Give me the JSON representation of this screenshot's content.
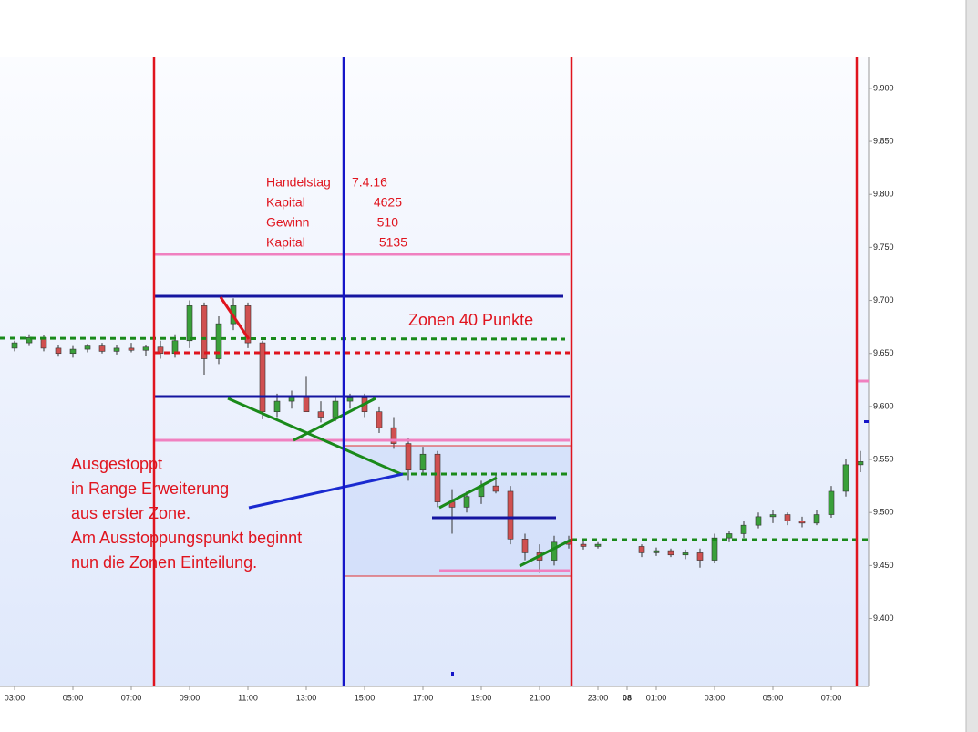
{
  "chart_data": {
    "type": "candlestick",
    "x": [
      3,
      3.5,
      4,
      4.5,
      5,
      5.5,
      6,
      6.5,
      7,
      7.5,
      8,
      8.5,
      9,
      9.5,
      10,
      10.5,
      11,
      11.5,
      12,
      12.5,
      13,
      13.5,
      14,
      14.5,
      15,
      15.5,
      16,
      16.5,
      17,
      17.5,
      18,
      18.5,
      19,
      19.5,
      20,
      20.5,
      21,
      21.5,
      22,
      22.5,
      23,
      24.5,
      25,
      25.5,
      26,
      26.5,
      27,
      27.5,
      28,
      28.5,
      29,
      29.5,
      30,
      30.5,
      31,
      31.5,
      32
    ],
    "open": [
      9655,
      9660,
      9665,
      9655,
      9650,
      9654,
      9657,
      9652,
      9655,
      9653,
      9656,
      9650,
      9662,
      9695,
      9645,
      9678,
      9695,
      9660,
      9595,
      9605,
      9610,
      9595,
      9590,
      9605,
      9608,
      9595,
      9580,
      9565,
      9540,
      9555,
      9510,
      9505,
      9515,
      9525,
      9520,
      9475,
      9462,
      9455,
      9472,
      9470,
      9468,
      9468,
      9462,
      9464,
      9460,
      9462,
      9455,
      9476,
      9480,
      9488,
      9496,
      9498,
      9492,
      9490,
      9498,
      9520,
      9545
    ],
    "high": [
      9662,
      9668,
      9667,
      9658,
      9657,
      9659,
      9660,
      9658,
      9660,
      9658,
      9662,
      9668,
      9700,
      9698,
      9685,
      9702,
      9698,
      9662,
      9612,
      9615,
      9628,
      9605,
      9610,
      9612,
      9612,
      9600,
      9590,
      9570,
      9562,
      9558,
      9522,
      9520,
      9530,
      9535,
      9525,
      9480,
      9470,
      9478,
      9478,
      9474,
      9472,
      9470,
      9467,
      9466,
      9465,
      9466,
      9480,
      9483,
      9492,
      9500,
      9502,
      9500,
      9496,
      9502,
      9525,
      9550,
      9558
    ],
    "low": [
      9652,
      9657,
      9652,
      9647,
      9646,
      9651,
      9650,
      9649,
      9651,
      9648,
      9645,
      9646,
      9655,
      9630,
      9640,
      9672,
      9655,
      9588,
      9590,
      9598,
      9600,
      9585,
      9586,
      9598,
      9590,
      9575,
      9560,
      9530,
      9535,
      9505,
      9480,
      9500,
      9508,
      9518,
      9470,
      9455,
      9443,
      9450,
      9466,
      9465,
      9466,
      9458,
      9459,
      9458,
      9456,
      9448,
      9452,
      9472,
      9476,
      9485,
      9490,
      9488,
      9486,
      9488,
      9495,
      9515,
      9538
    ],
    "close": [
      9660,
      9665,
      9655,
      9650,
      9654,
      9657,
      9652,
      9655,
      9653,
      9656,
      9650,
      9662,
      9695,
      9645,
      9678,
      9695,
      9660,
      9595,
      9605,
      9610,
      9595,
      9590,
      9605,
      9608,
      9595,
      9580,
      9565,
      9540,
      9555,
      9510,
      9505,
      9515,
      9525,
      9520,
      9475,
      9462,
      9455,
      9472,
      9470,
      9468,
      9470,
      9462,
      9464,
      9460,
      9462,
      9455,
      9476,
      9480,
      9488,
      9496,
      9498,
      9492,
      9490,
      9498,
      9520,
      9545,
      9548
    ],
    "up_color": "#3aa03a",
    "down_color": "#d05050",
    "xlim": [
      2.5,
      32.25
    ],
    "xticks": [
      {
        "value": 3,
        "label": "03:00"
      },
      {
        "value": 5,
        "label": "05:00"
      },
      {
        "value": 7,
        "label": "07:00"
      },
      {
        "value": 9,
        "label": "09:00"
      },
      {
        "value": 11,
        "label": "11:00"
      },
      {
        "value": 13,
        "label": "13:00"
      },
      {
        "value": 15,
        "label": "15:00"
      },
      {
        "value": 17,
        "label": "17:00"
      },
      {
        "value": 19,
        "label": "19:00"
      },
      {
        "value": 21,
        "label": "21:00"
      },
      {
        "value": 23,
        "label": "23:00"
      },
      {
        "value": 24,
        "label": "08"
      },
      {
        "value": 25,
        "label": "01:00"
      },
      {
        "value": 27,
        "label": "03:00"
      },
      {
        "value": 29,
        "label": "05:00"
      },
      {
        "value": 31,
        "label": "07:00"
      }
    ],
    "ylim": [
      9336,
      9930
    ],
    "yticks": [
      {
        "value": 9400,
        "label": "9.400"
      },
      {
        "value": 9450,
        "label": "9.450"
      },
      {
        "value": 9500,
        "label": "9.500"
      },
      {
        "value": 9550,
        "label": "9.550"
      },
      {
        "value": 9600,
        "label": "9.600"
      },
      {
        "value": 9650,
        "label": "9.650"
      },
      {
        "value": 9700,
        "label": "9.700"
      },
      {
        "value": 9750,
        "label": "9.750"
      },
      {
        "value": 9800,
        "label": "9.800"
      },
      {
        "value": 9850,
        "label": "9.850"
      },
      {
        "value": 9900,
        "label": "9.900"
      }
    ],
    "annotations": {
      "info": [
        [
          "Handelstag",
          "7.4.16"
        ],
        [
          "Kapital",
          "4625"
        ],
        [
          "Gewinn",
          "510"
        ],
        [
          "Kapital",
          "5135"
        ]
      ],
      "zones": "Zonen  40 Punkte",
      "note": [
        "Ausgestoppt",
        "in Range Erweiterung",
        "aus erster Zone.",
        "Am Ausstoppungspunkt beginnt",
        "nun die Zonen Einteilung."
      ]
    }
  }
}
